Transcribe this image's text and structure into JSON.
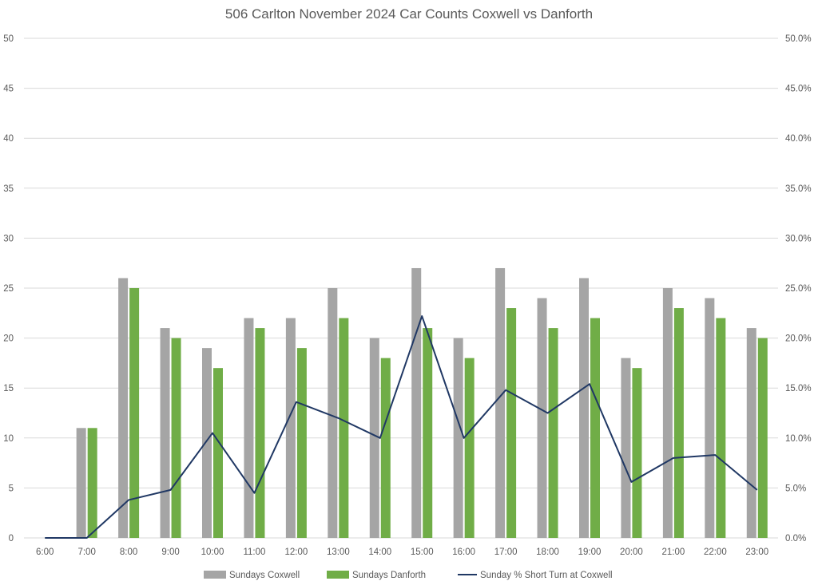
{
  "chart_data": {
    "type": "bar",
    "title": "506 Carlton November 2024 Car Counts Coxwell vs Danforth",
    "categories": [
      "6:00",
      "7:00",
      "8:00",
      "9:00",
      "10:00",
      "11:00",
      "12:00",
      "13:00",
      "14:00",
      "15:00",
      "16:00",
      "17:00",
      "18:00",
      "19:00",
      "20:00",
      "21:00",
      "22:00",
      "23:00"
    ],
    "y_left": {
      "min": 0,
      "max": 50,
      "step": 5,
      "ticks": [
        "0",
        "5",
        "10",
        "15",
        "20",
        "25",
        "30",
        "35",
        "40",
        "45",
        "50"
      ]
    },
    "y_right": {
      "min": 0,
      "max": 0.5,
      "step": 0.05,
      "ticks": [
        "0.0%",
        "5.0%",
        "10.0%",
        "15.0%",
        "20.0%",
        "25.0%",
        "30.0%",
        "35.0%",
        "40.0%",
        "45.0%",
        "50.0%"
      ]
    },
    "grid": true,
    "legend_position": "bottom",
    "series": [
      {
        "name": "Sundays Coxwell",
        "type": "bar",
        "axis": "left",
        "color": "#a5a5a5",
        "values": [
          0,
          11,
          26,
          21,
          19,
          22,
          22,
          25,
          20,
          27,
          20,
          27,
          24,
          26,
          18,
          25,
          24,
          21
        ]
      },
      {
        "name": "Sundays Danforth",
        "type": "bar",
        "axis": "left",
        "color": "#70ad47",
        "values": [
          0,
          11,
          25,
          20,
          17,
          21,
          19,
          22,
          18,
          21,
          18,
          23,
          21,
          22,
          17,
          23,
          22,
          20
        ]
      },
      {
        "name": "Sunday % Short Turn at Coxwell",
        "type": "line",
        "axis": "right",
        "color": "#203864",
        "values": [
          0,
          0,
          0.038,
          0.048,
          0.105,
          0.045,
          0.136,
          0.12,
          0.1,
          0.222,
          0.1,
          0.148,
          0.125,
          0.154,
          0.056,
          0.08,
          0.083,
          0.048
        ]
      }
    ]
  }
}
